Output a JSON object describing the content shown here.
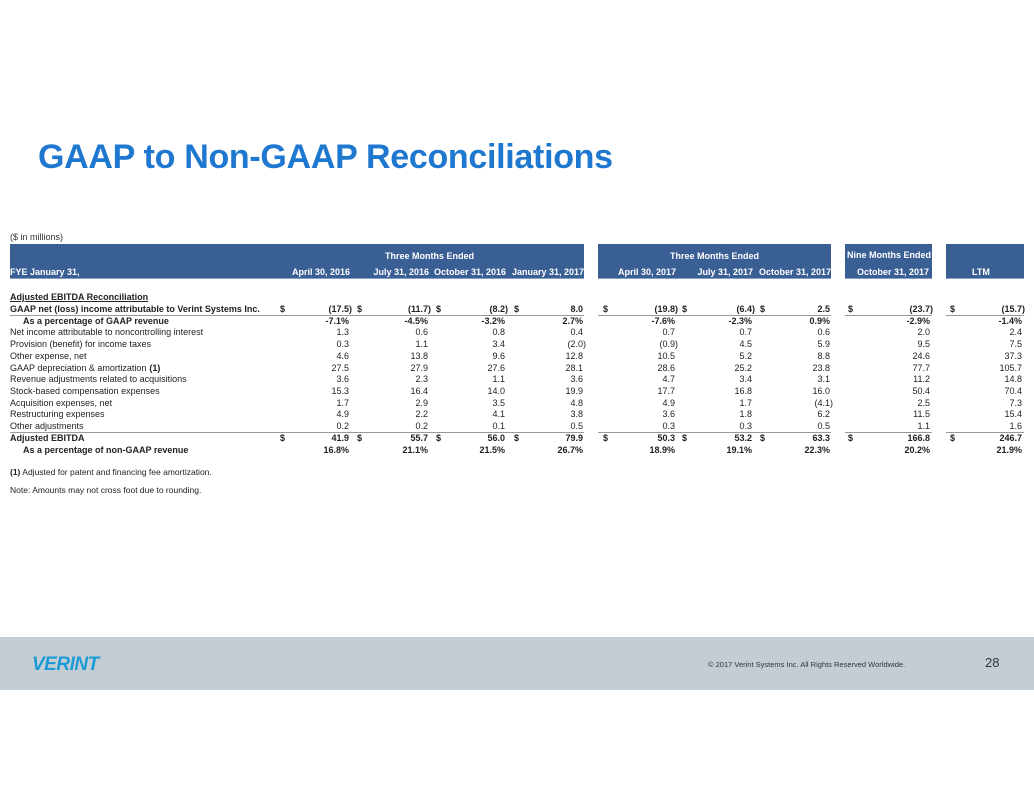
{
  "title": "GAAP to Non-GAAP Reconciliations",
  "units": "($ in millions)",
  "header": {
    "group1": "Three Months Ended",
    "group2": "Three Months Ended",
    "group3": "Nine Months Ended",
    "fye_label": "FYE January 31,",
    "columns": [
      "April 30, 2016",
      "July 31, 2016",
      "October 31, 2016",
      "January 31, 2017",
      "April 30, 2017",
      "July 31, 2017",
      "October 31, 2017",
      "October 31, 2017",
      "LTM"
    ]
  },
  "currency_symbol": "$",
  "section_title": "Adjusted EBITDA Reconciliation",
  "rows": [
    {
      "label": "GAAP net (loss) income attributable to Verint Systems Inc.",
      "bold": true,
      "indent": false,
      "dollar": true,
      "values": [
        "(17.5)",
        "(11.7)",
        "(8.2)",
        "8.0",
        "(19.8)",
        "(6.4)",
        "2.5",
        "(23.7)",
        "(15.7)"
      ]
    },
    {
      "label": "As a percentage of GAAP revenue",
      "bold": true,
      "indent": true,
      "dollar": false,
      "values": [
        "-7.1%",
        "-4.5%",
        "-3.2%",
        "2.7%",
        "-7.6%",
        "-2.3%",
        "0.9%",
        "-2.9%",
        "-1.4%"
      ]
    },
    {
      "label": "Net income attributable to noncontrolling interest",
      "bold": false,
      "indent": false,
      "dollar": false,
      "values": [
        "1.3",
        "0.6",
        "0.8",
        "0.4",
        "0.7",
        "0.7",
        "0.6",
        "2.0",
        "2.4"
      ]
    },
    {
      "label": "Provision (benefit) for income taxes",
      "bold": false,
      "indent": false,
      "dollar": false,
      "values": [
        "0.3",
        "1.1",
        "3.4",
        "(2.0)",
        "(0.9)",
        "4.5",
        "5.9",
        "9.5",
        "7.5"
      ]
    },
    {
      "label": "Other expense, net",
      "bold": false,
      "indent": false,
      "dollar": false,
      "values": [
        "4.6",
        "13.8",
        "9.6",
        "12.8",
        "10.5",
        "5.2",
        "8.8",
        "24.6",
        "37.3"
      ]
    },
    {
      "label": "GAAP depreciation & amortization",
      "footnote_ref": "(1)",
      "bold": false,
      "indent": false,
      "dollar": false,
      "values": [
        "27.5",
        "27.9",
        "27.6",
        "28.1",
        "28.6",
        "25.2",
        "23.8",
        "77.7",
        "105.7"
      ]
    },
    {
      "label": "Revenue adjustments related to acquisitions",
      "bold": false,
      "indent": false,
      "dollar": false,
      "values": [
        "3.6",
        "2.3",
        "1.1",
        "3.6",
        "4.7",
        "3.4",
        "3.1",
        "11.2",
        "14.8"
      ]
    },
    {
      "label": "Stock-based compensation expenses",
      "bold": false,
      "indent": false,
      "dollar": false,
      "values": [
        "15.3",
        "16.4",
        "14.0",
        "19.9",
        "17.7",
        "16.8",
        "16.0",
        "50.4",
        "70.4"
      ]
    },
    {
      "label": "Acquisition expenses, net",
      "bold": false,
      "indent": false,
      "dollar": false,
      "values": [
        "1.7",
        "2.9",
        "3.5",
        "4.8",
        "4.9",
        "1.7",
        "(4.1)",
        "2.5",
        "7.3"
      ]
    },
    {
      "label": "Restructuring expenses",
      "bold": false,
      "indent": false,
      "dollar": false,
      "values": [
        "4.9",
        "2.2",
        "4.1",
        "3.8",
        "3.6",
        "1.8",
        "6.2",
        "11.5",
        "15.4"
      ]
    },
    {
      "label": "Other adjustments",
      "bold": false,
      "indent": false,
      "dollar": false,
      "values": [
        "0.2",
        "0.2",
        "0.1",
        "0.5",
        "0.3",
        "0.3",
        "0.5",
        "1.1",
        "1.6"
      ]
    },
    {
      "label": "Adjusted EBITDA",
      "bold": true,
      "indent": false,
      "dollar": true,
      "values": [
        "41.9",
        "55.7",
        "56.0",
        "79.9",
        "50.3",
        "53.2",
        "63.3",
        "166.8",
        "246.7"
      ]
    },
    {
      "label": "As a percentage of non-GAAP revenue",
      "bold": true,
      "indent": true,
      "dollar": false,
      "values": [
        "16.8%",
        "21.1%",
        "21.5%",
        "26.7%",
        "18.9%",
        "19.1%",
        "22.3%",
        "20.2%",
        "21.9%"
      ]
    }
  ],
  "footnote": {
    "ref": "(1)",
    "text": " Adjusted for patent and financing fee amortization."
  },
  "note": "Note: Amounts may not cross foot due to rounding.",
  "footer": {
    "logo": "VERINT",
    "copyright": "© 2017 Verint Systems Inc. All Rights Reserved Worldwide.",
    "page_number": "28"
  }
}
